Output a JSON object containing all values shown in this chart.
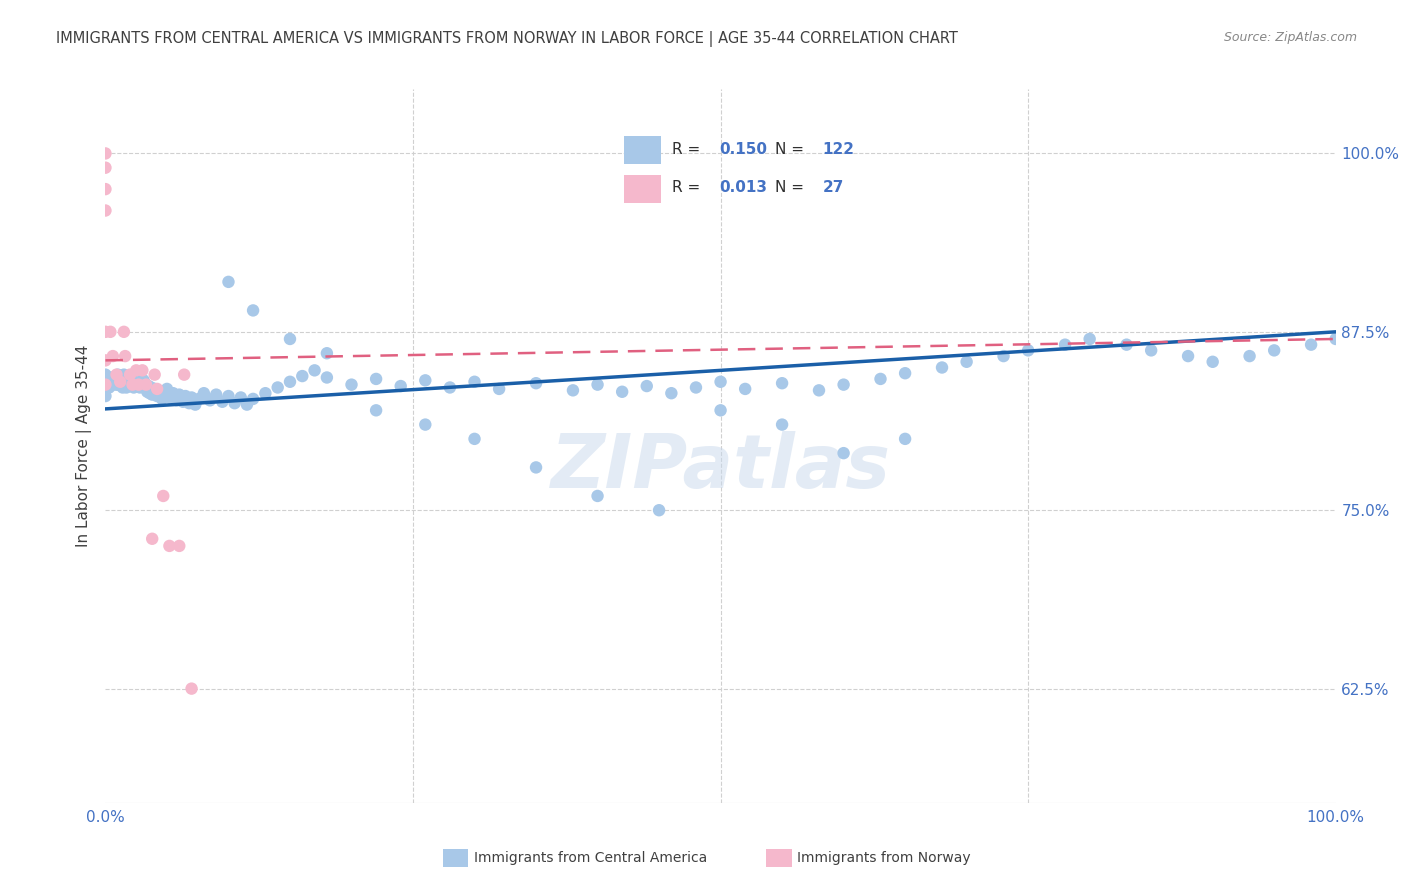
{
  "title": "IMMIGRANTS FROM CENTRAL AMERICA VS IMMIGRANTS FROM NORWAY IN LABOR FORCE | AGE 35-44 CORRELATION CHART",
  "source": "Source: ZipAtlas.com",
  "ylabel": "In Labor Force | Age 35-44",
  "xlim": [
    0.0,
    1.0
  ],
  "ylim": [
    0.545,
    1.045
  ],
  "yticks": [
    0.625,
    0.75,
    0.875,
    1.0
  ],
  "ytick_labels": [
    "62.5%",
    "75.0%",
    "87.5%",
    "100.0%"
  ],
  "xtick_labels": [
    "0.0%",
    "100.0%"
  ],
  "legend_R_blue": "0.150",
  "legend_N_blue": "122",
  "legend_R_pink": "0.013",
  "legend_N_pink": "27",
  "blue_color": "#a8c8e8",
  "pink_color": "#f5b8cc",
  "blue_line_color": "#1a5fa8",
  "pink_line_color": "#e06080",
  "blue_scatter_x": [
    0.0,
    0.0,
    0.0,
    0.002,
    0.003,
    0.004,
    0.005,
    0.006,
    0.007,
    0.008,
    0.009,
    0.01,
    0.01,
    0.011,
    0.012,
    0.013,
    0.014,
    0.015,
    0.015,
    0.016,
    0.017,
    0.018,
    0.019,
    0.02,
    0.021,
    0.022,
    0.023,
    0.024,
    0.025,
    0.026,
    0.027,
    0.028,
    0.029,
    0.03,
    0.031,
    0.032,
    0.033,
    0.034,
    0.035,
    0.036,
    0.037,
    0.038,
    0.04,
    0.042,
    0.044,
    0.046,
    0.048,
    0.05,
    0.052,
    0.055,
    0.058,
    0.06,
    0.063,
    0.065,
    0.068,
    0.07,
    0.073,
    0.076,
    0.08,
    0.085,
    0.09,
    0.095,
    0.1,
    0.105,
    0.11,
    0.115,
    0.12,
    0.13,
    0.14,
    0.15,
    0.16,
    0.17,
    0.18,
    0.2,
    0.22,
    0.24,
    0.26,
    0.28,
    0.3,
    0.32,
    0.35,
    0.38,
    0.4,
    0.42,
    0.44,
    0.46,
    0.48,
    0.5,
    0.52,
    0.55,
    0.58,
    0.6,
    0.63,
    0.65,
    0.68,
    0.7,
    0.73,
    0.75,
    0.78,
    0.8,
    0.83,
    0.85,
    0.88,
    0.9,
    0.93,
    0.95,
    0.98,
    1.0,
    0.1,
    0.12,
    0.15,
    0.18,
    0.22,
    0.26,
    0.3,
    0.35,
    0.4,
    0.45,
    0.5,
    0.55,
    0.6,
    0.65
  ],
  "blue_scatter_y": [
    0.845,
    0.838,
    0.83,
    0.842,
    0.836,
    0.84,
    0.843,
    0.838,
    0.84,
    0.843,
    0.838,
    0.845,
    0.838,
    0.841,
    0.838,
    0.842,
    0.836,
    0.845,
    0.838,
    0.841,
    0.836,
    0.842,
    0.837,
    0.843,
    0.838,
    0.841,
    0.836,
    0.84,
    0.843,
    0.837,
    0.841,
    0.836,
    0.84,
    0.837,
    0.841,
    0.836,
    0.838,
    0.833,
    0.837,
    0.832,
    0.836,
    0.831,
    0.835,
    0.83,
    0.833,
    0.828,
    0.832,
    0.835,
    0.829,
    0.832,
    0.827,
    0.831,
    0.826,
    0.83,
    0.825,
    0.829,
    0.824,
    0.828,
    0.832,
    0.827,
    0.831,
    0.826,
    0.83,
    0.825,
    0.829,
    0.824,
    0.828,
    0.832,
    0.836,
    0.84,
    0.844,
    0.848,
    0.843,
    0.838,
    0.842,
    0.837,
    0.841,
    0.836,
    0.84,
    0.835,
    0.839,
    0.834,
    0.838,
    0.833,
    0.837,
    0.832,
    0.836,
    0.84,
    0.835,
    0.839,
    0.834,
    0.838,
    0.842,
    0.846,
    0.85,
    0.854,
    0.858,
    0.862,
    0.866,
    0.87,
    0.866,
    0.862,
    0.858,
    0.854,
    0.858,
    0.862,
    0.866,
    0.87,
    0.91,
    0.89,
    0.87,
    0.86,
    0.82,
    0.81,
    0.8,
    0.78,
    0.76,
    0.75,
    0.82,
    0.81,
    0.79,
    0.8
  ],
  "pink_scatter_x": [
    0.0,
    0.0,
    0.0,
    0.0,
    0.0,
    0.0,
    0.0,
    0.004,
    0.006,
    0.009,
    0.012,
    0.015,
    0.016,
    0.02,
    0.022,
    0.025,
    0.027,
    0.03,
    0.033,
    0.038,
    0.04,
    0.042,
    0.047,
    0.052,
    0.06,
    0.064,
    0.07
  ],
  "pink_scatter_y": [
    1.0,
    0.99,
    0.975,
    0.96,
    0.875,
    0.855,
    0.838,
    0.875,
    0.858,
    0.845,
    0.84,
    0.875,
    0.858,
    0.845,
    0.838,
    0.848,
    0.838,
    0.848,
    0.838,
    0.73,
    0.845,
    0.835,
    0.76,
    0.725,
    0.725,
    0.845,
    0.625
  ],
  "blue_trend_x": [
    0.0,
    1.0
  ],
  "blue_trend_y": [
    0.821,
    0.875
  ],
  "pink_trend_x": [
    0.0,
    1.0
  ],
  "pink_trend_y": [
    0.855,
    0.87
  ],
  "grid_color": "#d0d0d0",
  "label_color": "#4472c4",
  "title_color": "#404040",
  "bg_color": "#ffffff",
  "watermark": "ZIPatlas"
}
